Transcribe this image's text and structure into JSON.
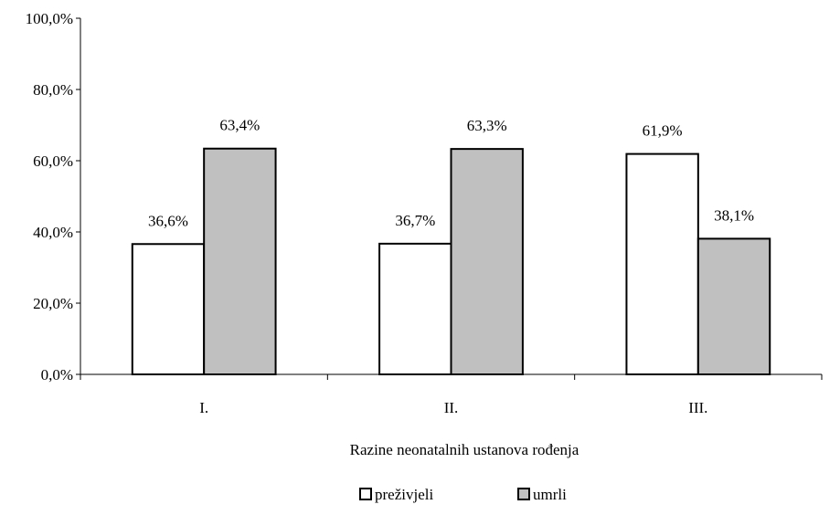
{
  "chart_data": {
    "type": "bar",
    "title": "",
    "xlabel": "Razine neonatalnih ustanova rođenja",
    "ylabel": "",
    "categories": [
      "I.",
      "II.",
      "III."
    ],
    "series": [
      {
        "name": "preživjeli",
        "values": [
          36.6,
          36.7,
          61.9
        ],
        "labels": [
          "36,6%",
          "36,7%",
          "61,9%"
        ],
        "color": "#ffffff"
      },
      {
        "name": "umrli",
        "values": [
          63.4,
          63.3,
          38.1
        ],
        "labels": [
          "63,4%",
          "63,3%",
          "38,1%"
        ],
        "color": "#c0c0c0"
      }
    ],
    "ylim": [
      0,
      100
    ],
    "yticks": [
      0,
      20,
      40,
      60,
      80,
      100
    ],
    "ytick_labels": [
      "0,0%",
      "20,0%",
      "40,0%",
      "60,0%",
      "80,0%",
      "100,0%"
    ],
    "grid": false,
    "legend_position": "bottom"
  }
}
